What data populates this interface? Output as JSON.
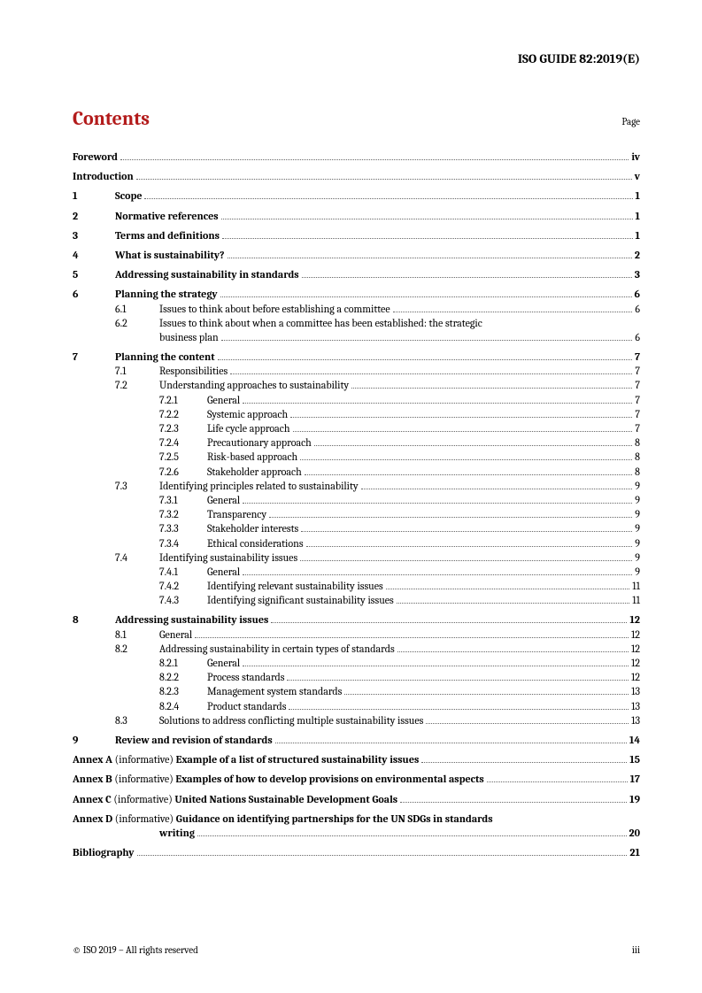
{
  "doc_header": "ISO GUIDE 82:2019(E)",
  "contents_title": "Contents",
  "page_label": "Page",
  "footer_left": "© ISO 2019 – All rights reserved",
  "footer_right": "iii",
  "front": [
    {
      "title": "Foreword",
      "page": "iv"
    },
    {
      "title": "Introduction",
      "page": "v"
    }
  ],
  "sections": [
    {
      "num": "1",
      "title": "Scope",
      "page": "1"
    },
    {
      "num": "2",
      "title": "Normative references",
      "page": "1"
    },
    {
      "num": "3",
      "title": "Terms and definitions",
      "page": "1"
    },
    {
      "num": "4",
      "title": "What is sustainability?",
      "page": "2"
    },
    {
      "num": "5",
      "title": "Addressing sustainability in standards",
      "page": "3"
    },
    {
      "num": "6",
      "title": "Planning the strategy",
      "page": "6",
      "subs": [
        {
          "num": "6.1",
          "title": "Issues to think about before establishing a committee",
          "page": "6"
        },
        {
          "num": "6.2",
          "title": "Issues to think about when a committee has been established: the strategic",
          "cont": "business plan",
          "page": "6"
        }
      ]
    },
    {
      "num": "7",
      "title": "Planning the content",
      "page": "7",
      "subs": [
        {
          "num": "7.1",
          "title": "Responsibilities",
          "page": "7"
        },
        {
          "num": "7.2",
          "title": "Understanding approaches to sustainability",
          "page": "7",
          "subs": [
            {
              "num": "7.2.1",
              "title": "General",
              "page": "7"
            },
            {
              "num": "7.2.2",
              "title": "Systemic approach",
              "page": "7"
            },
            {
              "num": "7.2.3",
              "title": "Life cycle approach",
              "page": "7"
            },
            {
              "num": "7.2.4",
              "title": "Precautionary approach",
              "page": "8"
            },
            {
              "num": "7.2.5",
              "title": "Risk-based approach",
              "page": "8"
            },
            {
              "num": "7.2.6",
              "title": "Stakeholder approach",
              "page": "8"
            }
          ]
        },
        {
          "num": "7.3",
          "title": "Identifying principles related to sustainability",
          "page": "9",
          "subs": [
            {
              "num": "7.3.1",
              "title": "General",
              "page": "9"
            },
            {
              "num": "7.3.2",
              "title": "Transparency",
              "page": "9"
            },
            {
              "num": "7.3.3",
              "title": "Stakeholder interests",
              "page": "9"
            },
            {
              "num": "7.3.4",
              "title": "Ethical considerations",
              "page": "9"
            }
          ]
        },
        {
          "num": "7.4",
          "title": "Identifying sustainability issues",
          "page": "9",
          "subs": [
            {
              "num": "7.4.1",
              "title": "General",
              "page": "9"
            },
            {
              "num": "7.4.2",
              "title": "Identifying relevant sustainability issues",
              "page": "11"
            },
            {
              "num": "7.4.3",
              "title": "Identifying significant sustainability issues",
              "page": "11"
            }
          ]
        }
      ]
    },
    {
      "num": "8",
      "title": "Addressing sustainability issues",
      "page": "12",
      "subs": [
        {
          "num": "8.1",
          "title": "General",
          "page": "12"
        },
        {
          "num": "8.2",
          "title": "Addressing sustainability in certain types of standards",
          "page": "12",
          "subs": [
            {
              "num": "8.2.1",
              "title": "General",
              "page": "12"
            },
            {
              "num": "8.2.2",
              "title": "Process standards",
              "page": "12"
            },
            {
              "num": "8.2.3",
              "title": "Management system standards",
              "page": "13"
            },
            {
              "num": "8.2.4",
              "title": "Product standards",
              "page": "13"
            }
          ]
        },
        {
          "num": "8.3",
          "title": "Solutions to address conflicting multiple sustainability issues",
          "page": "13"
        }
      ]
    },
    {
      "num": "9",
      "title": "Review and revision of standards",
      "page": "14"
    }
  ],
  "annexes": [
    {
      "prefix": "Annex A",
      "info": " (informative) ",
      "title": "Example of a list of structured sustainability issues",
      "page": "15"
    },
    {
      "prefix": "Annex B",
      "info": " (informative) ",
      "title": "Examples of how to develop provisions on environmental aspects",
      "page": "17"
    },
    {
      "prefix": "Annex C",
      "info": " (informative) ",
      "title": "United Nations Sustainable Development Goals",
      "page": "19"
    },
    {
      "prefix": "Annex D",
      "info": " (informative) ",
      "title": "Guidance on identifying partnerships for the UN SDGs in standards",
      "cont": "writing",
      "page": "20"
    }
  ],
  "back": [
    {
      "title": "Bibliography",
      "page": "21"
    }
  ]
}
